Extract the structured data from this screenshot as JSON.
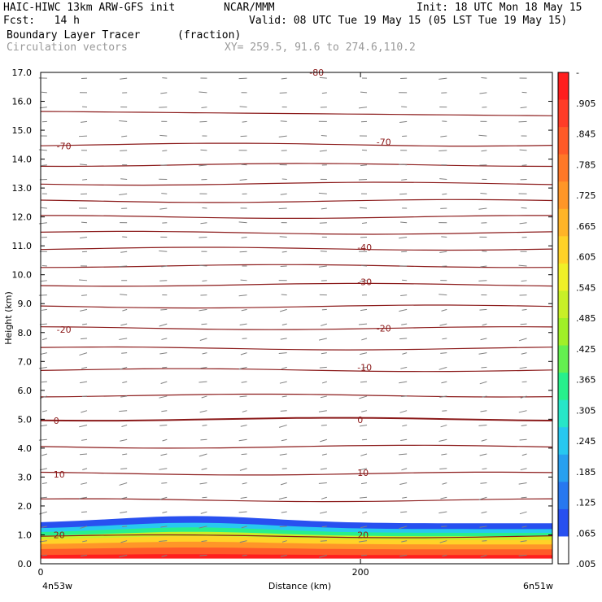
{
  "header": {
    "line1_left": "HAIC-HIWC 13km ARW-GFS init",
    "line1_mid": "NCAR/MMM",
    "line1_right": "Init: 18 UTC Mon 18 May 15",
    "line2_left": "Fcst:   14 h",
    "line2_right": "Valid: 08 UTC Tue 19 May 15 (05 LST Tue 19 May 15)",
    "line3_left": "Boundary Layer Tracer",
    "line3_mid": "(fraction)",
    "line4_left": "Circulation vectors",
    "line4_mid": "XY= 259.5, 91.6 to 274.6,110.2"
  },
  "chart_data": {
    "type": "heatmap",
    "ylabel": "Height (km)",
    "xlabel": "Distance (km)",
    "x_left_label": "4n53w",
    "x_right_label": "6n51w",
    "x_ticks": [
      "0",
      "200"
    ],
    "x_tick_values": [
      0,
      200
    ],
    "xlim": [
      0,
      320
    ],
    "ylim": [
      0,
      17
    ],
    "y_ticks": [
      "0.0",
      "1.0",
      "2.0",
      "3.0",
      "4.0",
      "5.0",
      "6.0",
      "7.0",
      "8.0",
      "9.0",
      "10.0",
      "11.0",
      "12.0",
      "13.0",
      "14.0",
      "15.0",
      "16.0",
      "17.0"
    ],
    "y_tick_values": [
      0,
      1,
      2,
      3,
      4,
      5,
      6,
      7,
      8,
      9,
      10,
      11,
      12,
      13,
      14,
      15,
      16,
      17
    ],
    "colorbar_labels": [
      "-",
      ".905",
      ".845",
      ".785",
      ".725",
      ".665",
      ".605",
      ".545",
      ".485",
      ".425",
      ".365",
      ".305",
      ".245",
      ".185",
      ".125",
      ".065",
      ".005"
    ],
    "colorbar_colors": [
      "#ff1e1e",
      "#ff3c28",
      "#ff5a28",
      "#ff7828",
      "#ff9628",
      "#ffb428",
      "#ffd228",
      "#f0f028",
      "#c8f028",
      "#a0f028",
      "#64f050",
      "#28f08c",
      "#28e6c8",
      "#28c8f0",
      "#28a0f0",
      "#2878f0",
      "#2850f0",
      "#ffffff"
    ],
    "contour_color": "#8b1a1a",
    "temperature_contour_labels": [
      {
        "text": "-70",
        "x": 10,
        "y": 14.45
      },
      {
        "text": "-70",
        "x": 210,
        "y": 14.6
      },
      {
        "text": "-40",
        "x": 198,
        "y": 10.95
      },
      {
        "text": "-30",
        "x": 198,
        "y": 9.75
      },
      {
        "text": "-20",
        "x": 10,
        "y": 8.1
      },
      {
        "text": "-20",
        "x": 210,
        "y": 8.15
      },
      {
        "text": "-10",
        "x": 198,
        "y": 6.8
      },
      {
        "text": "0",
        "x": 8,
        "y": 4.95
      },
      {
        "text": "0",
        "x": 198,
        "y": 4.98
      },
      {
        "text": "10",
        "x": 8,
        "y": 3.1
      },
      {
        "text": "10",
        "x": 198,
        "y": 3.15
      },
      {
        "text": "20",
        "x": 8,
        "y": 1.0
      },
      {
        "text": "20",
        "x": 198,
        "y": 1.0
      },
      {
        "text": "-80",
        "x": 168,
        "y": 17.0
      }
    ]
  }
}
